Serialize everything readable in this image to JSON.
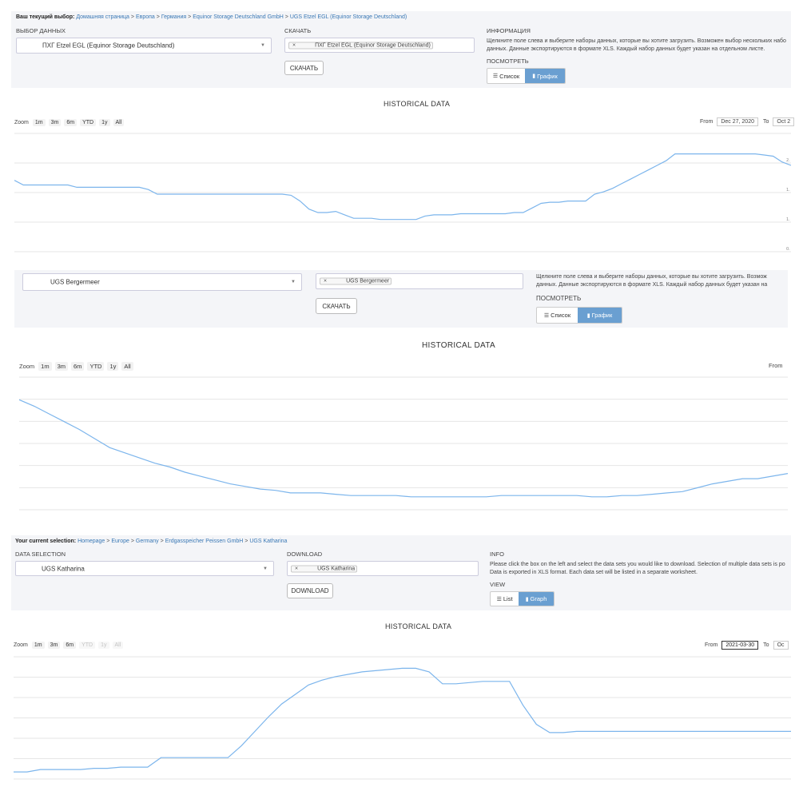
{
  "screen1": {
    "breadcrumb": {
      "label": "Ваш текущий выбор:",
      "items": [
        "Домашняя страница",
        "Европа",
        "Германия",
        "Equinor Storage Deutschland GmbH",
        "UGS Etzel EGL (Equinor Storage Deutschland)"
      ],
      "separator": ">"
    },
    "data_selection_label": "ВЫБОР ДАННЫХ",
    "selected_value": "ПХГ Etzel EGL (Equinor Storage Deutschland)",
    "download_label": "СКАЧАТЬ",
    "download_tag": "ПХГ Etzel EGL (Equinor Storage Deutschland)",
    "download_button": "СКАЧАТЬ",
    "info_label": "ИНФОРМАЦИЯ",
    "info_line1": "Щелкните поле слева и выберите наборы данных, которые вы хотите загрузить. Возможен выбор нескольких набо",
    "info_line2": "данных. Данные экспортируются в формате XLS. Каждый набор данных будет указан на отдельном листе.",
    "view_label": "ПОСМОТРЕТЬ",
    "view_list": "Список",
    "view_graph": "График",
    "chart_title": "HISTORICAL DATA",
    "zoom_label": "Zoom",
    "zoom_buttons": [
      "1m",
      "3m",
      "6m",
      "YTD",
      "1y",
      "All"
    ],
    "from_label": "From",
    "from_value": "Dec 27, 2020",
    "to_label": "To",
    "to_value": "Oct 2",
    "y_tick_labels": [
      "2.",
      "1.",
      "1.",
      "0."
    ]
  },
  "screen2": {
    "selected_value": "UGS Bergermeer",
    "download_tag": "UGS Bergermeer",
    "download_button": "СКАЧАТЬ",
    "info_line1": "Щелкните поле слева и выберите наборы данных, которые вы хотите загрузить. Возмож",
    "info_line2": "данных. Данные экспортируются в формате XLS. Каждый набор данных будет указан на",
    "view_label": "ПОСМОТРЕТЬ",
    "view_list": "Список",
    "view_graph": "График",
    "chart_title": "HISTORICAL DATA",
    "zoom_label": "Zoom",
    "zoom_buttons": [
      "1m",
      "3m",
      "6m",
      "YTD",
      "1y",
      "All"
    ],
    "from_label": "From"
  },
  "screen3": {
    "breadcrumb": {
      "label": "Your current selection:",
      "items": [
        "Homepage",
        "Europe",
        "Germany",
        "Erdgasspeicher Peissen GmbH",
        "UGS Katharina"
      ],
      "separator": ">"
    },
    "data_selection_label": "DATA SELECTION",
    "selected_value": "UGS Katharina",
    "download_label": "DOWNLOAD",
    "download_tag": "UGS Katharina",
    "download_button": "DOWNLOAD",
    "info_label": "INFO",
    "info_line1": "Please click the box on the left and select the data sets you would like to download. Selection of multiple data sets is po",
    "info_line2": "Data is exported in XLS format. Each data set will be listed in a separate worksheet.",
    "view_label": "VIEW",
    "view_list": "List",
    "view_graph": "Graph",
    "chart_title": "HISTORICAL DATA",
    "zoom_label": "Zoom",
    "zoom_buttons": [
      "1m",
      "3m",
      "6m",
      "YTD",
      "1y",
      "All"
    ],
    "zoom_disabled": [
      "YTD",
      "1y",
      "All"
    ],
    "from_label": "From",
    "from_value": "2021-03-30",
    "to_label": "To",
    "to_value": "Oc"
  },
  "colors": {
    "panel_bg": "#f4f5f8",
    "link": "#3a78b5",
    "series": "#7cb5ec",
    "active_toggle": "#6a9fd1"
  },
  "icons": {
    "list": "list-icon",
    "graph": "bar-chart-icon",
    "remove": "remove-x-icon",
    "caret": "caret-down-icon"
  },
  "chart_data": [
    {
      "type": "line",
      "title": "HISTORICAL DATA",
      "x_start": "Dec 27, 2020",
      "y_range": [
        0,
        100
      ],
      "grid": true,
      "series": [
        {
          "values": [
            62,
            58,
            58,
            58,
            58,
            58,
            58,
            56,
            56,
            56,
            56,
            56,
            56,
            56,
            56,
            54,
            50,
            50,
            50,
            50,
            50,
            50,
            50,
            50,
            50,
            50,
            50,
            50,
            50,
            50,
            50,
            49,
            44,
            37,
            34,
            34,
            35,
            32,
            29,
            29,
            29,
            28,
            28,
            28,
            28,
            28,
            31,
            32,
            32,
            32,
            33,
            33,
            33,
            33,
            33,
            33,
            34,
            34,
            38,
            42,
            43,
            43,
            44,
            44,
            44,
            50,
            52,
            55,
            59,
            63,
            67,
            71,
            75,
            79,
            85,
            85,
            85,
            85,
            85,
            85,
            85,
            85,
            85,
            85,
            84,
            83,
            78,
            75
          ]
        }
      ]
    },
    {
      "type": "line",
      "title": "HISTORICAL DATA",
      "y_range": [
        0,
        100
      ],
      "grid": true,
      "series": [
        {
          "values": [
            85,
            80,
            74,
            68,
            62,
            55,
            48,
            44,
            40,
            36,
            33,
            29,
            26,
            23,
            20,
            18,
            16,
            15,
            13,
            13,
            13,
            12,
            11,
            11,
            11,
            11,
            10,
            10,
            10,
            10,
            10,
            10,
            11,
            11,
            11,
            11,
            11,
            11,
            10,
            10,
            11,
            11,
            12,
            13,
            14,
            17,
            20,
            22,
            24,
            24,
            26,
            28
          ]
        }
      ]
    },
    {
      "type": "line",
      "title": "HISTORICAL DATA",
      "x_start": "2021-03-30",
      "y_range": [
        0,
        100
      ],
      "grid": true,
      "series": [
        {
          "values": [
            6,
            6,
            8,
            8,
            8,
            8,
            9,
            9,
            10,
            10,
            10,
            18,
            18,
            18,
            18,
            18,
            18,
            28,
            40,
            52,
            63,
            71,
            79,
            83,
            86,
            88,
            90,
            91,
            92,
            93,
            93,
            90,
            80,
            80,
            81,
            82,
            82,
            82,
            62,
            46,
            39,
            39,
            40,
            40,
            40,
            40,
            40,
            40,
            40,
            40,
            40,
            40,
            40,
            40,
            40,
            40,
            40,
            40,
            40
          ]
        }
      ]
    }
  ]
}
